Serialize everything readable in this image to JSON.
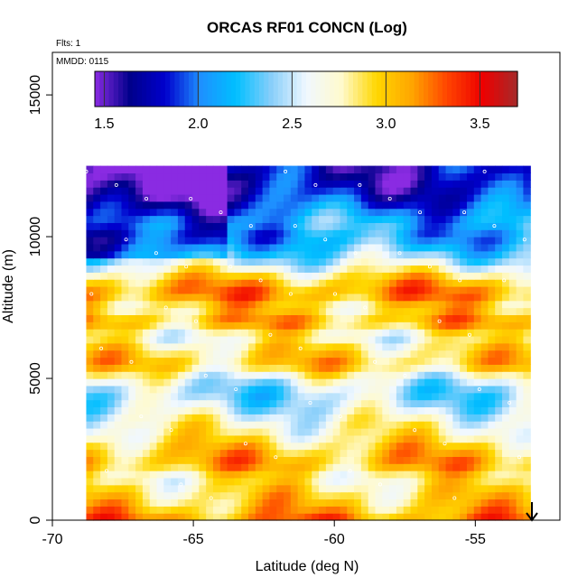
{
  "chart_data": {
    "type": "heatmap",
    "title": "ORCAS RF01 CONCN (Log)",
    "annotations": [
      "Flts: 1",
      "MMDD: 0115"
    ],
    "xlabel": "Latitude (deg N)",
    "ylabel": "Altitude (m)",
    "xlim": [
      -70,
      -52
    ],
    "ylim": [
      0,
      16500
    ],
    "x_ticks": [
      -70,
      -65,
      -60,
      -55
    ],
    "y_ticks": [
      0,
      5000,
      10000,
      15000
    ],
    "x_tick_labels": [
      "-70",
      "-65",
      "-60",
      "-55"
    ],
    "y_tick_labels": [
      "0",
      "5000",
      "10000",
      "15000"
    ],
    "colorbar": {
      "range": [
        1.45,
        3.7
      ],
      "ticks": [
        1.5,
        2.0,
        2.5,
        3.0,
        3.5
      ],
      "tick_labels": [
        "1.5",
        "2.0",
        "2.5",
        "3.0",
        "3.5"
      ],
      "colors": [
        "#8a2be2",
        "#00008b",
        "#0000cd",
        "#1e90ff",
        "#00bfff",
        "#87cefa",
        "#f0f8ff",
        "#fffacd",
        "#ffd700",
        "#ffa500",
        "#ff4500",
        "#ee0000",
        "#a52a2a"
      ]
    },
    "data_extent": {
      "lat": [
        -68.8,
        -53.1
      ],
      "alt": [
        0,
        12500
      ]
    },
    "layers": [
      {
        "alt": 12000,
        "value": 1.7
      },
      {
        "alt": 11500,
        "value": 1.8
      },
      {
        "alt": 11000,
        "value": 2.0
      },
      {
        "alt": 10500,
        "value": 2.2
      },
      {
        "alt": 10000,
        "value": 2.1
      },
      {
        "alt": 9500,
        "value": 2.3
      },
      {
        "alt": 9000,
        "value": 2.6
      },
      {
        "alt": 8500,
        "value": 3.0
      },
      {
        "alt": 8000,
        "value": 3.2
      },
      {
        "alt": 7500,
        "value": 2.9
      },
      {
        "alt": 7000,
        "value": 3.1
      },
      {
        "alt": 6500,
        "value": 2.7
      },
      {
        "alt": 6000,
        "value": 2.9
      },
      {
        "alt": 5500,
        "value": 3.0
      },
      {
        "alt": 5000,
        "value": 2.6
      },
      {
        "alt": 4500,
        "value": 2.4
      },
      {
        "alt": 4000,
        "value": 2.5
      },
      {
        "alt": 3500,
        "value": 2.7
      },
      {
        "alt": 3000,
        "value": 2.8
      },
      {
        "alt": 2500,
        "value": 3.0
      },
      {
        "alt": 2000,
        "value": 3.1
      },
      {
        "alt": 1500,
        "value": 2.8
      },
      {
        "alt": 1000,
        "value": 2.9
      },
      {
        "alt": 500,
        "value": 3.0
      },
      {
        "alt": 0,
        "value": 3.2
      }
    ],
    "grid": false,
    "legend": "colorbar top"
  }
}
